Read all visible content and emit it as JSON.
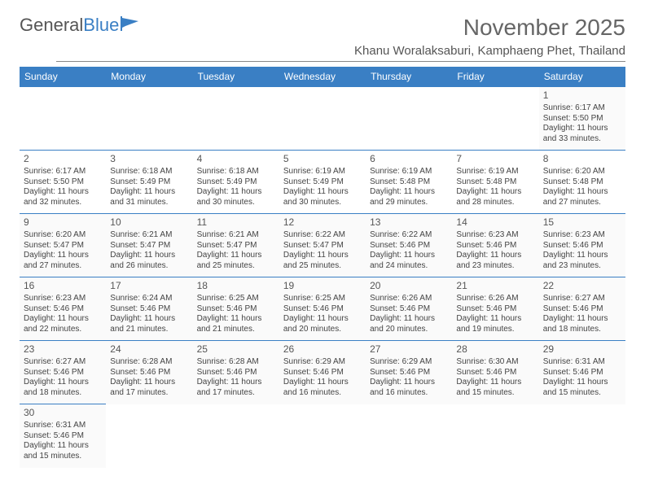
{
  "logo": {
    "word1": "General",
    "word2": "Blue"
  },
  "title": "November 2025",
  "location": "Khanu Woralaksaburi, Kamphaeng Phet, Thailand",
  "colors": {
    "header_bg": "#3a7fc4",
    "header_fg": "#ffffff",
    "cell_border": "#3a7fc4",
    "text": "#444444",
    "title": "#666666"
  },
  "weekdays": [
    "Sunday",
    "Monday",
    "Tuesday",
    "Wednesday",
    "Thursday",
    "Friday",
    "Saturday"
  ],
  "weeks": [
    [
      null,
      null,
      null,
      null,
      null,
      null,
      {
        "d": "1",
        "sr": "6:17 AM",
        "ss": "5:50 PM",
        "dlA": "11 hours",
        "dlB": "and 33 minutes."
      }
    ],
    [
      {
        "d": "2",
        "sr": "6:17 AM",
        "ss": "5:50 PM",
        "dlA": "11 hours",
        "dlB": "and 32 minutes."
      },
      {
        "d": "3",
        "sr": "6:18 AM",
        "ss": "5:49 PM",
        "dlA": "11 hours",
        "dlB": "and 31 minutes."
      },
      {
        "d": "4",
        "sr": "6:18 AM",
        "ss": "5:49 PM",
        "dlA": "11 hours",
        "dlB": "and 30 minutes."
      },
      {
        "d": "5",
        "sr": "6:19 AM",
        "ss": "5:49 PM",
        "dlA": "11 hours",
        "dlB": "and 30 minutes."
      },
      {
        "d": "6",
        "sr": "6:19 AM",
        "ss": "5:48 PM",
        "dlA": "11 hours",
        "dlB": "and 29 minutes."
      },
      {
        "d": "7",
        "sr": "6:19 AM",
        "ss": "5:48 PM",
        "dlA": "11 hours",
        "dlB": "and 28 minutes."
      },
      {
        "d": "8",
        "sr": "6:20 AM",
        "ss": "5:48 PM",
        "dlA": "11 hours",
        "dlB": "and 27 minutes."
      }
    ],
    [
      {
        "d": "9",
        "sr": "6:20 AM",
        "ss": "5:47 PM",
        "dlA": "11 hours",
        "dlB": "and 27 minutes."
      },
      {
        "d": "10",
        "sr": "6:21 AM",
        "ss": "5:47 PM",
        "dlA": "11 hours",
        "dlB": "and 26 minutes."
      },
      {
        "d": "11",
        "sr": "6:21 AM",
        "ss": "5:47 PM",
        "dlA": "11 hours",
        "dlB": "and 25 minutes."
      },
      {
        "d": "12",
        "sr": "6:22 AM",
        "ss": "5:47 PM",
        "dlA": "11 hours",
        "dlB": "and 25 minutes."
      },
      {
        "d": "13",
        "sr": "6:22 AM",
        "ss": "5:46 PM",
        "dlA": "11 hours",
        "dlB": "and 24 minutes."
      },
      {
        "d": "14",
        "sr": "6:23 AM",
        "ss": "5:46 PM",
        "dlA": "11 hours",
        "dlB": "and 23 minutes."
      },
      {
        "d": "15",
        "sr": "6:23 AM",
        "ss": "5:46 PM",
        "dlA": "11 hours",
        "dlB": "and 23 minutes."
      }
    ],
    [
      {
        "d": "16",
        "sr": "6:23 AM",
        "ss": "5:46 PM",
        "dlA": "11 hours",
        "dlB": "and 22 minutes."
      },
      {
        "d": "17",
        "sr": "6:24 AM",
        "ss": "5:46 PM",
        "dlA": "11 hours",
        "dlB": "and 21 minutes."
      },
      {
        "d": "18",
        "sr": "6:25 AM",
        "ss": "5:46 PM",
        "dlA": "11 hours",
        "dlB": "and 21 minutes."
      },
      {
        "d": "19",
        "sr": "6:25 AM",
        "ss": "5:46 PM",
        "dlA": "11 hours",
        "dlB": "and 20 minutes."
      },
      {
        "d": "20",
        "sr": "6:26 AM",
        "ss": "5:46 PM",
        "dlA": "11 hours",
        "dlB": "and 20 minutes."
      },
      {
        "d": "21",
        "sr": "6:26 AM",
        "ss": "5:46 PM",
        "dlA": "11 hours",
        "dlB": "and 19 minutes."
      },
      {
        "d": "22",
        "sr": "6:27 AM",
        "ss": "5:46 PM",
        "dlA": "11 hours",
        "dlB": "and 18 minutes."
      }
    ],
    [
      {
        "d": "23",
        "sr": "6:27 AM",
        "ss": "5:46 PM",
        "dlA": "11 hours",
        "dlB": "and 18 minutes."
      },
      {
        "d": "24",
        "sr": "6:28 AM",
        "ss": "5:46 PM",
        "dlA": "11 hours",
        "dlB": "and 17 minutes."
      },
      {
        "d": "25",
        "sr": "6:28 AM",
        "ss": "5:46 PM",
        "dlA": "11 hours",
        "dlB": "and 17 minutes."
      },
      {
        "d": "26",
        "sr": "6:29 AM",
        "ss": "5:46 PM",
        "dlA": "11 hours",
        "dlB": "and 16 minutes."
      },
      {
        "d": "27",
        "sr": "6:29 AM",
        "ss": "5:46 PM",
        "dlA": "11 hours",
        "dlB": "and 16 minutes."
      },
      {
        "d": "28",
        "sr": "6:30 AM",
        "ss": "5:46 PM",
        "dlA": "11 hours",
        "dlB": "and 15 minutes."
      },
      {
        "d": "29",
        "sr": "6:31 AM",
        "ss": "5:46 PM",
        "dlA": "11 hours",
        "dlB": "and 15 minutes."
      }
    ],
    [
      {
        "d": "30",
        "sr": "6:31 AM",
        "ss": "5:46 PM",
        "dlA": "11 hours",
        "dlB": "and 15 minutes."
      },
      null,
      null,
      null,
      null,
      null,
      null
    ]
  ],
  "labels": {
    "sunrise": "Sunrise:",
    "sunset": "Sunset:",
    "daylight": "Daylight:"
  }
}
